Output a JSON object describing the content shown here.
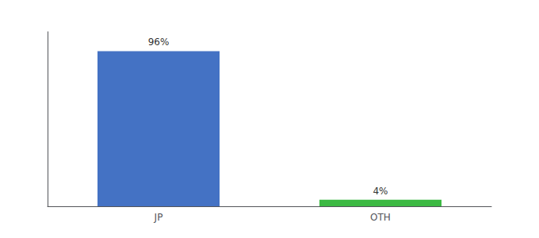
{
  "chart_data": {
    "type": "bar",
    "categories": [
      "JP",
      "OTH"
    ],
    "values": [
      96,
      4
    ],
    "value_labels": [
      "96%",
      "4%"
    ],
    "colors": [
      "#4472c4",
      "#3cb943"
    ],
    "ylim": [
      0,
      108
    ],
    "data_labels": true,
    "tick_labels": "x",
    "grid": false
  }
}
